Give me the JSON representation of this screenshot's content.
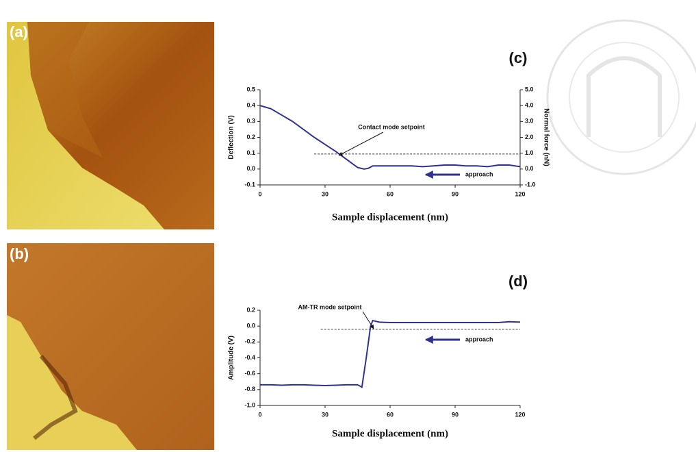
{
  "images": [
    {
      "label": "(a)"
    },
    {
      "label": "(b)"
    }
  ],
  "chart_data": [
    {
      "type": "line",
      "panel_label": "(c)",
      "x": [
        0,
        5,
        10,
        15,
        20,
        25,
        30,
        35,
        40,
        45,
        48,
        50,
        52,
        60,
        65,
        70,
        75,
        80,
        85,
        90,
        95,
        100,
        105,
        110,
        115,
        120
      ],
      "values": [
        0.4,
        0.38,
        0.34,
        0.3,
        0.25,
        0.2,
        0.155,
        0.11,
        0.06,
        0.01,
        0.0,
        0.005,
        0.02,
        0.02,
        0.02,
        0.02,
        0.015,
        0.02,
        0.025,
        0.025,
        0.02,
        0.02,
        0.015,
        0.025,
        0.025,
        0.015
      ],
      "color": "#2e3192",
      "xlim": [
        0,
        120
      ],
      "xticks": [
        0,
        30,
        60,
        90,
        120
      ],
      "ylim": [
        -0.1,
        0.5
      ],
      "yticks": [
        0.5,
        0.4,
        0.3,
        0.2,
        0.1,
        {
          "value": 0,
          "label": "0.0"
        },
        -0.1
      ],
      "y2lim": [
        -1,
        5
      ],
      "y2ticks": [
        {
          "value": 5,
          "label": "5.0"
        },
        {
          "value": 4,
          "label": "4.0"
        },
        {
          "value": 3,
          "label": "3.0"
        },
        {
          "value": 2,
          "label": "2.0"
        },
        {
          "value": 1,
          "label": "1.0"
        },
        {
          "value": 0,
          "label": "0.0"
        },
        {
          "value": -1,
          "label": "-1.0"
        }
      ],
      "xlabel": "Sample displacement (nm)",
      "ylabel": "Deflection (V)",
      "y2label": "Normal force (nN)",
      "setpoint": {
        "y": 0.095,
        "x": [
          25,
          120
        ]
      },
      "annotations": [
        "Contact mode setpoint",
        "approach"
      ]
    },
    {
      "type": "line",
      "panel_label": "(d)",
      "x": [
        0,
        5,
        10,
        15,
        20,
        25,
        30,
        35,
        40,
        45,
        47,
        49,
        51,
        52,
        55,
        60,
        70,
        80,
        90,
        100,
        110,
        115,
        120
      ],
      "values": [
        -0.74,
        -0.74,
        -0.745,
        -0.74,
        -0.74,
        -0.745,
        -0.75,
        -0.745,
        -0.74,
        -0.74,
        -0.77,
        -0.4,
        0.0,
        0.07,
        0.05,
        0.045,
        0.045,
        0.045,
        0.045,
        0.045,
        0.045,
        0.055,
        0.05
      ],
      "color": "#2e3192",
      "xlim": [
        0,
        120
      ],
      "xticks": [
        0,
        30,
        60,
        90,
        120
      ],
      "ylim": [
        -1,
        0.2
      ],
      "yticks": [
        0.2,
        {
          "value": 0,
          "label": "0.0"
        },
        -0.2,
        -0.4,
        -0.6,
        -0.8,
        {
          "value": -1,
          "label": "-1.0"
        }
      ],
      "xlabel": "Sample displacement (nm)",
      "ylabel": "Amplitude (V)",
      "setpoint": {
        "y": -0.04,
        "x": [
          28,
          120
        ]
      },
      "annotations": [
        "AM-TR mode setpoint",
        "approach"
      ]
    }
  ]
}
